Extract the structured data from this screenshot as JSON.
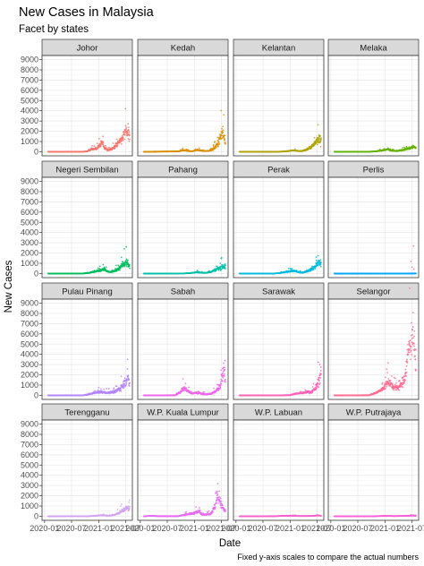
{
  "chart_data": {
    "type": "scatter",
    "title": "New Cases in Malaysia",
    "subtitle": "Facet by states",
    "xlabel": "Date",
    "ylabel": "New Cases",
    "caption": "Fixed y-axis scales to compare the actual numbers",
    "ylim": [
      -400,
      9400
    ],
    "y_ticks": [
      0,
      1000,
      2000,
      3000,
      4000,
      5000,
      6000,
      7000,
      8000,
      9000
    ],
    "y_tick_labels": [
      "0",
      "1000",
      "2000",
      "3000",
      "4000",
      "5000",
      "6000",
      "7000",
      "8000",
      "9000"
    ],
    "xlim": [
      "2019-12-15",
      "2021-08-15"
    ],
    "x_ticks": [
      "2020-01-01",
      "2020-07-01",
      "2021-01-01",
      "2021-07-01"
    ],
    "x_tick_labels": [
      "2020-01",
      "2020-07",
      "2021-01",
      "2021-07"
    ],
    "grid": true,
    "theme": "bw",
    "facet_layout": {
      "rows": 4,
      "cols": 4
    },
    "series": [
      {
        "name": "Johor",
        "color": "#F8766D",
        "profile": [
          [
            "2020-01-25",
            0
          ],
          [
            "2020-09-15",
            5
          ],
          [
            "2020-10-15",
            40
          ],
          [
            "2020-11-15",
            250
          ],
          [
            "2020-12-20",
            320
          ],
          [
            "2021-01-10",
            700
          ],
          [
            "2021-01-25",
            900
          ],
          [
            "2021-02-10",
            300
          ],
          [
            "2021-03-05",
            150
          ],
          [
            "2021-04-01",
            280
          ],
          [
            "2021-05-10",
            800
          ],
          [
            "2021-05-25",
            1000
          ],
          [
            "2021-06-10",
            1350
          ],
          [
            "2021-06-25",
            1800
          ],
          [
            "2021-07-08",
            2050
          ],
          [
            "2021-07-18",
            1500
          ],
          [
            "2021-07-28",
            1400
          ]
        ]
      },
      {
        "name": "Kedah",
        "color": "#DB8E00",
        "profile": [
          [
            "2020-01-25",
            0
          ],
          [
            "2020-09-15",
            30
          ],
          [
            "2020-10-15",
            150
          ],
          [
            "2020-11-15",
            90
          ],
          [
            "2020-12-15",
            40
          ],
          [
            "2021-01-20",
            180
          ],
          [
            "2021-02-10",
            120
          ],
          [
            "2021-03-15",
            60
          ],
          [
            "2021-04-20",
            120
          ],
          [
            "2021-05-15",
            350
          ],
          [
            "2021-06-10",
            900
          ],
          [
            "2021-06-25",
            1500
          ],
          [
            "2021-07-08",
            2000
          ],
          [
            "2021-07-18",
            1500
          ],
          [
            "2021-07-28",
            1050
          ]
        ]
      },
      {
        "name": "Kelantan",
        "color": "#AEA200",
        "profile": [
          [
            "2020-01-25",
            0
          ],
          [
            "2020-10-15",
            5
          ],
          [
            "2020-12-01",
            30
          ],
          [
            "2021-01-20",
            130
          ],
          [
            "2021-02-20",
            70
          ],
          [
            "2021-03-20",
            60
          ],
          [
            "2021-04-20",
            200
          ],
          [
            "2021-05-20",
            450
          ],
          [
            "2021-06-10",
            700
          ],
          [
            "2021-06-25",
            1000
          ],
          [
            "2021-07-10",
            1200
          ],
          [
            "2021-07-28",
            1150
          ]
        ]
      },
      {
        "name": "Melaka",
        "color": "#64B200",
        "profile": [
          [
            "2020-01-25",
            0
          ],
          [
            "2020-09-15",
            5
          ],
          [
            "2020-11-01",
            30
          ],
          [
            "2020-12-15",
            140
          ],
          [
            "2021-01-20",
            260
          ],
          [
            "2021-02-10",
            130
          ],
          [
            "2021-03-20",
            60
          ],
          [
            "2021-04-20",
            150
          ],
          [
            "2021-05-20",
            250
          ],
          [
            "2021-06-20",
            350
          ],
          [
            "2021-07-10",
            500
          ],
          [
            "2021-07-28",
            360
          ]
        ]
      },
      {
        "name": "Negeri Sembilan",
        "color": "#00BD5C",
        "profile": [
          [
            "2020-01-25",
            0
          ],
          [
            "2020-09-15",
            5
          ],
          [
            "2020-10-20",
            50
          ],
          [
            "2020-12-01",
            180
          ],
          [
            "2021-01-15",
            320
          ],
          [
            "2021-02-05",
            450
          ],
          [
            "2021-02-25",
            200
          ],
          [
            "2021-03-20",
            150
          ],
          [
            "2021-04-20",
            250
          ],
          [
            "2021-05-20",
            500
          ],
          [
            "2021-06-10",
            900
          ],
          [
            "2021-06-25",
            1000
          ],
          [
            "2021-07-10",
            1200
          ],
          [
            "2021-07-20",
            900
          ],
          [
            "2021-07-28",
            600
          ]
        ]
      },
      {
        "name": "Pahang",
        "color": "#00C1A7",
        "profile": [
          [
            "2020-01-25",
            0
          ],
          [
            "2020-10-15",
            5
          ],
          [
            "2020-12-01",
            40
          ],
          [
            "2021-01-20",
            130
          ],
          [
            "2021-02-20",
            80
          ],
          [
            "2021-03-20",
            60
          ],
          [
            "2021-04-20",
            150
          ],
          [
            "2021-05-20",
            350
          ],
          [
            "2021-06-20",
            550
          ],
          [
            "2021-07-10",
            700
          ],
          [
            "2021-07-28",
            650
          ]
        ]
      },
      {
        "name": "Perak",
        "color": "#00BADE",
        "profile": [
          [
            "2020-01-25",
            0
          ],
          [
            "2020-09-15",
            5
          ],
          [
            "2020-10-20",
            40
          ],
          [
            "2020-12-01",
            150
          ],
          [
            "2021-01-20",
            280
          ],
          [
            "2021-02-20",
            150
          ],
          [
            "2021-03-20",
            80
          ],
          [
            "2021-04-20",
            200
          ],
          [
            "2021-05-20",
            400
          ],
          [
            "2021-06-15",
            650
          ],
          [
            "2021-07-05",
            950
          ],
          [
            "2021-07-18",
            1150
          ],
          [
            "2021-07-28",
            950
          ]
        ]
      },
      {
        "name": "Perlis",
        "color": "#00A6FF",
        "profile": [
          [
            "2020-01-25",
            0
          ],
          [
            "2021-01-01",
            2
          ],
          [
            "2021-05-01",
            5
          ],
          [
            "2021-07-28",
            10
          ]
        ]
      },
      {
        "name": "Pulau Pinang",
        "color": "#B385FF",
        "profile": [
          [
            "2020-01-25",
            0
          ],
          [
            "2020-09-15",
            5
          ],
          [
            "2020-10-20",
            60
          ],
          [
            "2020-12-01",
            250
          ],
          [
            "2021-01-15",
            330
          ],
          [
            "2021-02-20",
            250
          ],
          [
            "2021-03-20",
            300
          ],
          [
            "2021-04-20",
            350
          ],
          [
            "2021-05-20",
            650
          ],
          [
            "2021-06-10",
            900
          ],
          [
            "2021-06-25",
            1300
          ],
          [
            "2021-07-10",
            1700
          ],
          [
            "2021-07-20",
            1450
          ],
          [
            "2021-07-28",
            1050
          ]
        ]
      },
      {
        "name": "Sabah",
        "color": "#EF67EB",
        "profile": [
          [
            "2020-01-25",
            0
          ],
          [
            "2020-08-25",
            10
          ],
          [
            "2020-09-25",
            300
          ],
          [
            "2020-10-15",
            650
          ],
          [
            "2020-10-25",
            700
          ],
          [
            "2020-11-15",
            450
          ],
          [
            "2020-12-10",
            200
          ],
          [
            "2021-01-15",
            250
          ],
          [
            "2021-02-20",
            150
          ],
          [
            "2021-03-20",
            100
          ],
          [
            "2021-04-20",
            150
          ],
          [
            "2021-05-20",
            350
          ],
          [
            "2021-06-10",
            650
          ],
          [
            "2021-06-25",
            1200
          ],
          [
            "2021-07-08",
            2200
          ],
          [
            "2021-07-18",
            2500
          ],
          [
            "2021-07-28",
            1200
          ]
        ]
      },
      {
        "name": "Sarawak",
        "color": "#FF63B6",
        "profile": [
          [
            "2020-01-25",
            0
          ],
          [
            "2020-11-01",
            5
          ],
          [
            "2021-01-01",
            20
          ],
          [
            "2021-02-01",
            150
          ],
          [
            "2021-03-01",
            200
          ],
          [
            "2021-04-01",
            250
          ],
          [
            "2021-05-01",
            350
          ],
          [
            "2021-05-20",
            300
          ],
          [
            "2021-06-10",
            500
          ],
          [
            "2021-06-25",
            800
          ],
          [
            "2021-07-08",
            1300
          ],
          [
            "2021-07-20",
            1800
          ],
          [
            "2021-07-28",
            2300
          ]
        ]
      },
      {
        "name": "Selangor",
        "color": "#FF6C91",
        "profile": [
          [
            "2020-01-25",
            0
          ],
          [
            "2020-09-15",
            10
          ],
          [
            "2020-10-15",
            150
          ],
          [
            "2020-11-15",
            350
          ],
          [
            "2020-12-15",
            600
          ],
          [
            "2021-01-15",
            1200
          ],
          [
            "2021-01-28",
            1400
          ],
          [
            "2021-02-15",
            900
          ],
          [
            "2021-03-15",
            700
          ],
          [
            "2021-04-15",
            900
          ],
          [
            "2021-05-15",
            1800
          ],
          [
            "2021-05-30",
            3500
          ],
          [
            "2021-06-10",
            4500
          ],
          [
            "2021-06-25",
            5500
          ],
          [
            "2021-07-08",
            6500
          ],
          [
            "2021-07-18",
            4500
          ],
          [
            "2021-07-28",
            2500
          ]
        ]
      },
      {
        "name": "Terengganu",
        "color": "#D3A4F0",
        "profile": [
          [
            "2020-01-25",
            0
          ],
          [
            "2020-10-15",
            5
          ],
          [
            "2020-12-01",
            30
          ],
          [
            "2021-01-20",
            100
          ],
          [
            "2021-02-20",
            70
          ],
          [
            "2021-03-20",
            50
          ],
          [
            "2021-04-20",
            150
          ],
          [
            "2021-05-20",
            350
          ],
          [
            "2021-06-10",
            550
          ],
          [
            "2021-06-25",
            700
          ],
          [
            "2021-07-10",
            780
          ],
          [
            "2021-07-28",
            760
          ]
        ]
      },
      {
        "name": "W.P. Kuala Lumpur",
        "color": "#E76BF3",
        "profile": [
          [
            "2020-01-25",
            0
          ],
          [
            "2020-03-20",
            40
          ],
          [
            "2020-04-20",
            10
          ],
          [
            "2020-09-15",
            10
          ],
          [
            "2020-10-15",
            100
          ],
          [
            "2020-11-15",
            200
          ],
          [
            "2020-12-15",
            250
          ],
          [
            "2021-01-15",
            400
          ],
          [
            "2021-02-01",
            450
          ],
          [
            "2021-02-20",
            200
          ],
          [
            "2021-03-20",
            150
          ],
          [
            "2021-04-20",
            250
          ],
          [
            "2021-05-10",
            700
          ],
          [
            "2021-05-25",
            1200
          ],
          [
            "2021-06-05",
            1900
          ],
          [
            "2021-06-15",
            1700
          ],
          [
            "2021-06-30",
            1100
          ],
          [
            "2021-07-15",
            700
          ],
          [
            "2021-07-28",
            500
          ]
        ]
      },
      {
        "name": "W.P. Labuan",
        "color": "#F863CE",
        "profile": [
          [
            "2020-01-25",
            0
          ],
          [
            "2020-10-01",
            10
          ],
          [
            "2020-11-01",
            30
          ],
          [
            "2021-01-15",
            50
          ],
          [
            "2021-03-01",
            20
          ],
          [
            "2021-05-15",
            20
          ],
          [
            "2021-06-15",
            60
          ],
          [
            "2021-07-10",
            80
          ],
          [
            "2021-07-28",
            40
          ]
        ]
      },
      {
        "name": "W.P. Putrajaya",
        "color": "#FB61D7",
        "profile": [
          [
            "2020-01-25",
            0
          ],
          [
            "2020-10-15",
            5
          ],
          [
            "2021-01-15",
            30
          ],
          [
            "2021-03-01",
            15
          ],
          [
            "2021-05-15",
            30
          ],
          [
            "2021-06-15",
            50
          ],
          [
            "2021-07-10",
            60
          ],
          [
            "2021-07-28",
            45
          ]
        ]
      }
    ]
  }
}
